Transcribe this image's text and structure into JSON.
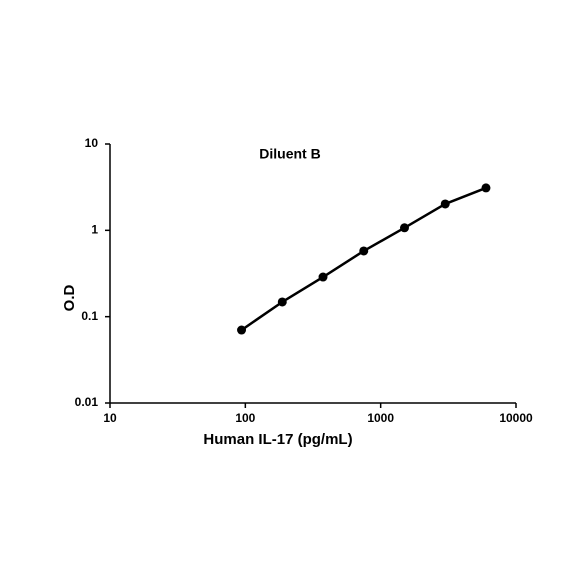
{
  "chart_data": {
    "type": "line",
    "title": "Diluent B",
    "x_label": "Human IL-17 (pg/mL)",
    "y_label": "O.D",
    "x": [
      93.75,
      187.5,
      375,
      750,
      1500,
      3000,
      6000
    ],
    "series": [
      {
        "name": "Diluent B",
        "color": "#000000",
        "values": [
          0.07,
          0.148,
          0.288,
          0.577,
          1.07,
          2.02,
          3.1
        ]
      }
    ],
    "xlim": [
      10,
      10000
    ],
    "ylim": [
      0.01,
      10
    ],
    "xticks": [
      10,
      100,
      1000,
      10000
    ],
    "yticks": [
      0.01,
      0.1,
      1,
      10
    ],
    "xscale": "log",
    "yscale": "log"
  }
}
